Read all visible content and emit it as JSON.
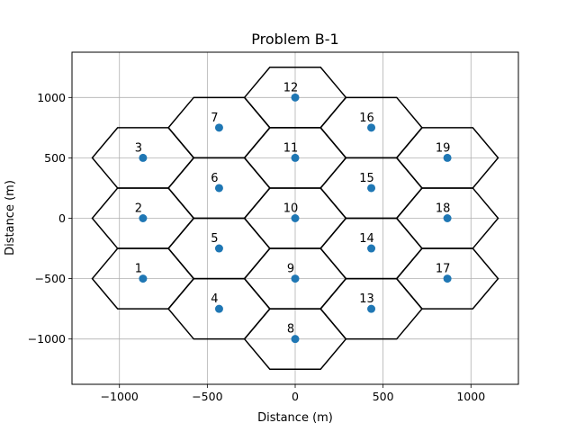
{
  "chart_data": {
    "type": "scatter",
    "title": "Problem B-1",
    "xlabel": "Distance (m)",
    "ylabel": "Distance (m)",
    "xlim": [
      -1270,
      1270
    ],
    "ylim": [
      -1375,
      1375
    ],
    "grid": true,
    "xticks": [
      {
        "value": -1000,
        "label": "−1000"
      },
      {
        "value": -500,
        "label": "−500"
      },
      {
        "value": 0,
        "label": "0"
      },
      {
        "value": 500,
        "label": "500"
      },
      {
        "value": 1000,
        "label": "1000"
      }
    ],
    "yticks": [
      {
        "value": -1000,
        "label": "−1000"
      },
      {
        "value": -500,
        "label": "−500"
      },
      {
        "value": 0,
        "label": "0"
      },
      {
        "value": 500,
        "label": "500"
      },
      {
        "value": 1000,
        "label": "1000"
      }
    ],
    "hex_radius": 288.68,
    "point_color": "#1f77b4",
    "edge_color": "#000000",
    "cells": [
      {
        "id": "1",
        "x": -866,
        "y": -500
      },
      {
        "id": "2",
        "x": -866,
        "y": 0
      },
      {
        "id": "3",
        "x": -866,
        "y": 500
      },
      {
        "id": "4",
        "x": -433,
        "y": -750
      },
      {
        "id": "5",
        "x": -433,
        "y": -250
      },
      {
        "id": "6",
        "x": -433,
        "y": 250
      },
      {
        "id": "7",
        "x": -433,
        "y": 750
      },
      {
        "id": "8",
        "x": 0,
        "y": -1000
      },
      {
        "id": "9",
        "x": 0,
        "y": -500
      },
      {
        "id": "10",
        "x": 0,
        "y": 0
      },
      {
        "id": "11",
        "x": 0,
        "y": 500
      },
      {
        "id": "12",
        "x": 0,
        "y": 1000
      },
      {
        "id": "13",
        "x": 433,
        "y": -750
      },
      {
        "id": "14",
        "x": 433,
        "y": -250
      },
      {
        "id": "15",
        "x": 433,
        "y": 250
      },
      {
        "id": "16",
        "x": 433,
        "y": 750
      },
      {
        "id": "17",
        "x": 866,
        "y": -500
      },
      {
        "id": "18",
        "x": 866,
        "y": 0
      },
      {
        "id": "19",
        "x": 866,
        "y": 500
      }
    ]
  }
}
